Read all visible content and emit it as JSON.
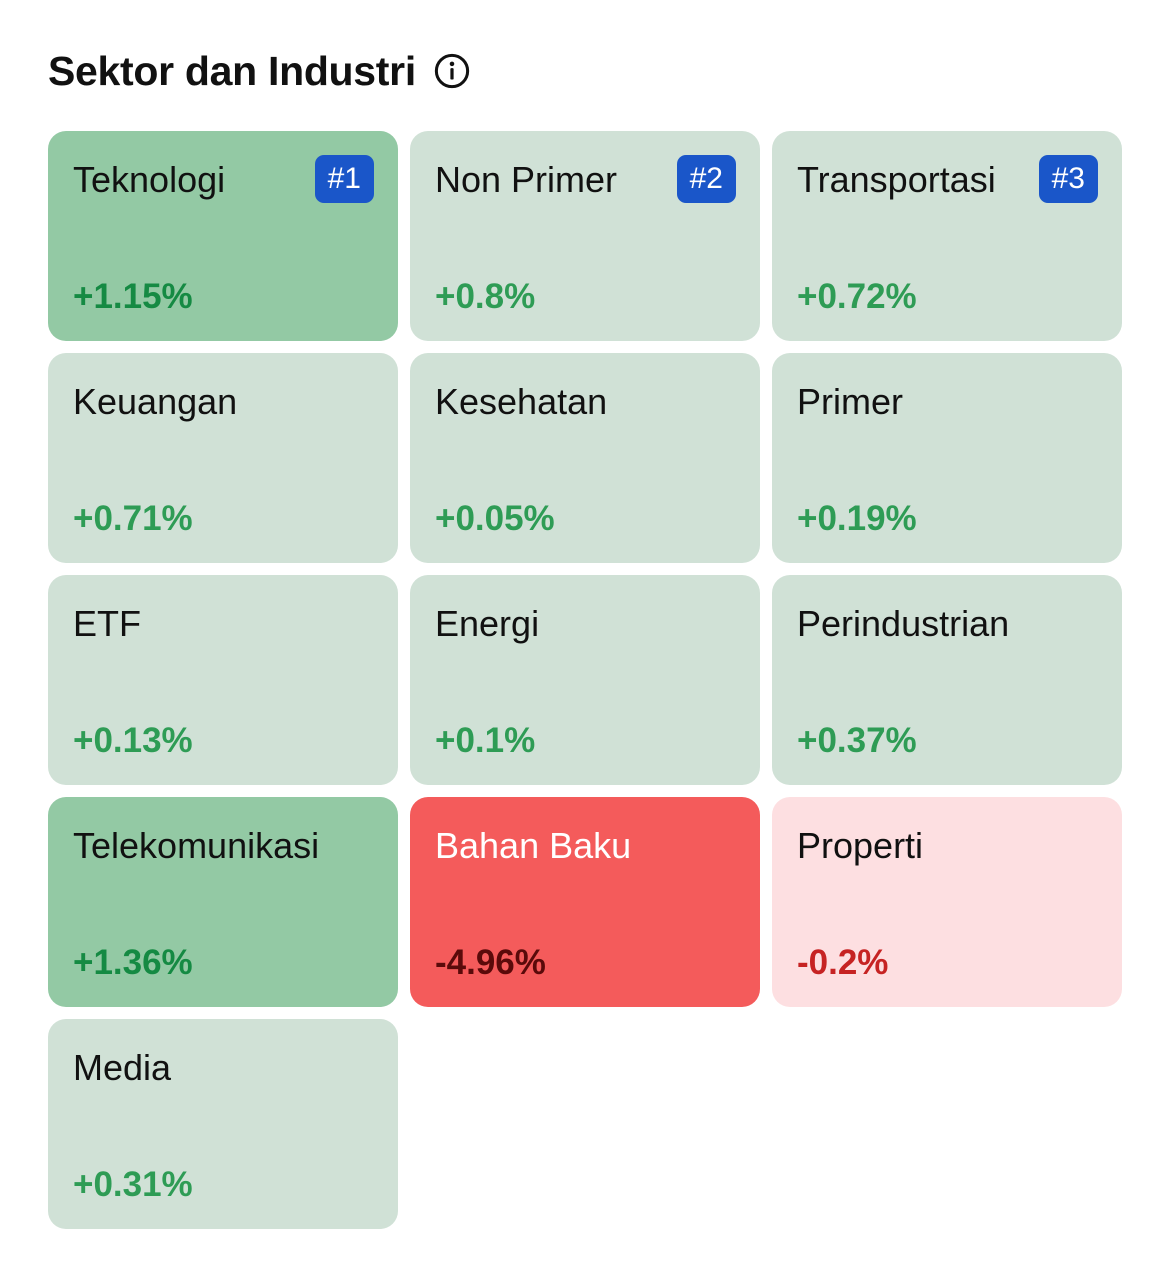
{
  "header": {
    "title": "Sektor dan Industri",
    "info_icon": "info-circle-icon"
  },
  "colors": {
    "strong_green_bg": "#93c9a4",
    "light_green_bg": "#d0e1d6",
    "strong_red_bg": "#f45b5b",
    "light_red_bg": "#fddfe1",
    "green_text_on_light": "#2e9c55",
    "green_text_on_strong": "#158a43",
    "red_text": "#c62323",
    "dark_red_text": "#5a0a0a",
    "badge_bg": "#1a56c9"
  },
  "sectors": [
    {
      "name": "Teknologi",
      "change": "+1.15%",
      "rank": "#1",
      "tone": "strong_green"
    },
    {
      "name": "Non Primer",
      "change": "+0.8%",
      "rank": "#2",
      "tone": "light_green"
    },
    {
      "name": "Transportasi",
      "change": "+0.72%",
      "rank": "#3",
      "tone": "light_green"
    },
    {
      "name": "Keuangan",
      "change": "+0.71%",
      "rank": "",
      "tone": "light_green"
    },
    {
      "name": "Kesehatan",
      "change": "+0.05%",
      "rank": "",
      "tone": "light_green"
    },
    {
      "name": "Primer",
      "change": "+0.19%",
      "rank": "",
      "tone": "light_green"
    },
    {
      "name": "ETF",
      "change": "+0.13%",
      "rank": "",
      "tone": "light_green"
    },
    {
      "name": "Energi",
      "change": "+0.1%",
      "rank": "",
      "tone": "light_green"
    },
    {
      "name": "Perindustrian",
      "change": "+0.37%",
      "rank": "",
      "tone": "light_green"
    },
    {
      "name": "Telekomunikasi",
      "change": "+1.36%",
      "rank": "",
      "tone": "strong_green"
    },
    {
      "name": "Bahan Baku",
      "change": "-4.96%",
      "rank": "",
      "tone": "strong_red"
    },
    {
      "name": "Properti",
      "change": "-0.2%",
      "rank": "",
      "tone": "light_red"
    },
    {
      "name": "Media",
      "change": "+0.31%",
      "rank": "",
      "tone": "light_green"
    }
  ]
}
